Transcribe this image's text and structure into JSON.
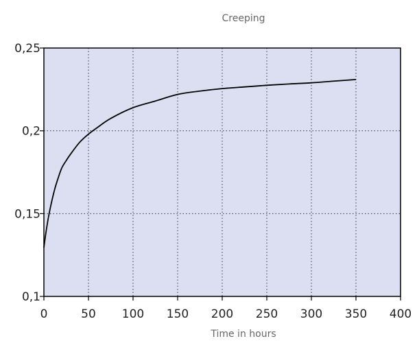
{
  "chart_data": {
    "type": "line",
    "title": "Creeping",
    "xlabel": "Time in hours",
    "ylabel": "",
    "xlim": [
      0,
      400
    ],
    "ylim": [
      0.1,
      0.25
    ],
    "xticks": [
      0,
      50,
      100,
      150,
      200,
      250,
      300,
      350,
      400
    ],
    "xtick_labels": [
      "0",
      "50",
      "100",
      "150",
      "200",
      "250",
      "300",
      "350",
      "400"
    ],
    "yticks": [
      0.1,
      0.15,
      0.2,
      0.25
    ],
    "ytick_labels": [
      "0,1",
      "0,15",
      "0,2",
      "0,25"
    ],
    "grid": true,
    "legend": "none",
    "colors": {
      "plot_background": "#dcdff2",
      "line": "#000000",
      "grid": "#333333"
    },
    "series": [
      {
        "x": [
          0,
          2,
          5,
          8,
          12,
          16,
          20,
          25,
          30,
          40,
          50,
          60,
          75,
          100,
          125,
          150,
          175,
          200,
          225,
          250,
          275,
          300,
          325,
          350
        ],
        "values": [
          0.1295,
          0.1375,
          0.1475,
          0.1555,
          0.1645,
          0.1715,
          0.1775,
          0.182,
          0.186,
          0.193,
          0.198,
          0.202,
          0.2075,
          0.214,
          0.218,
          0.222,
          0.224,
          0.2255,
          0.2265,
          0.2275,
          0.2283,
          0.229,
          0.23,
          0.231
        ]
      }
    ]
  }
}
